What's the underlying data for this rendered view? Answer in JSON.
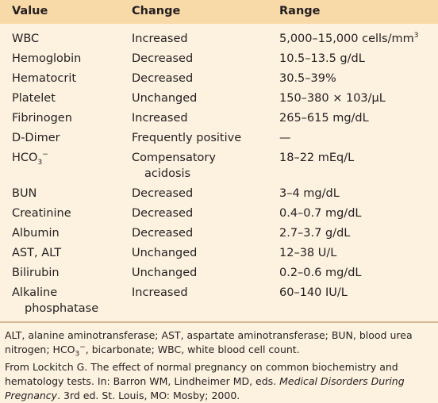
{
  "table": {
    "headers": [
      "Value",
      "Change",
      "Range"
    ],
    "rows": [
      {
        "value": "WBC",
        "change": "Increased",
        "range": "5,000–15,000 cells/mm",
        "range_sup": "3"
      },
      {
        "value": "Hemoglobin",
        "change": "Decreased",
        "range": "10.5–13.5 g/dL"
      },
      {
        "value": "Hematocrit",
        "change": "Decreased",
        "range": "30.5–39%"
      },
      {
        "value": "Platelet",
        "change": "Unchanged",
        "range": "150–380 × 103/µL"
      },
      {
        "value": "Fibrinogen",
        "change": "Increased",
        "range": "265–615 mg/dL"
      },
      {
        "value": "D-Dimer",
        "change": "Frequently positive",
        "range": "—"
      },
      {
        "value": "HCO",
        "value_sub": "3",
        "value_sup": "−",
        "change": "Compensatory",
        "change_line2": "acidosis",
        "range": "18–22 mEq/L"
      },
      {
        "value": "BUN",
        "change": "Decreased",
        "range": "3–4 mg/dL"
      },
      {
        "value": "Creatinine",
        "change": "Decreased",
        "range": "0.4–0.7 mg/dL"
      },
      {
        "value": "Albumin",
        "change": "Decreased",
        "range": "2.7–3.7 g/dL"
      },
      {
        "value": "AST, ALT",
        "change": "Unchanged",
        "range": "12–38 U/L"
      },
      {
        "value": "Bilirubin",
        "change": "Unchanged",
        "range": "0.2–0.6 mg/dL"
      },
      {
        "value": "Alkaline",
        "value_line2": "phosphatase",
        "change": "Increased",
        "range": "60–140 IU/L"
      }
    ]
  },
  "footnotes": {
    "abbrev_a": "ALT, alanine aminotransferase; AST, aspartate aminotransferase; BUN, blood urea nitrogen; HCO",
    "abbrev_sub": "3",
    "abbrev_sup": "−",
    "abbrev_b": ", bicarbonate; WBC, white blood cell count.",
    "source_a": "From Lockitch G. The effect of normal pregnancy on common biochemistry and hematology tests. In: Barron WM, Lindheimer MD, eds. ",
    "source_italic": "Medical Disorders During Pregnancy",
    "source_b": ". 3rd ed. St. Louis, MO: Mosby; 2000."
  }
}
